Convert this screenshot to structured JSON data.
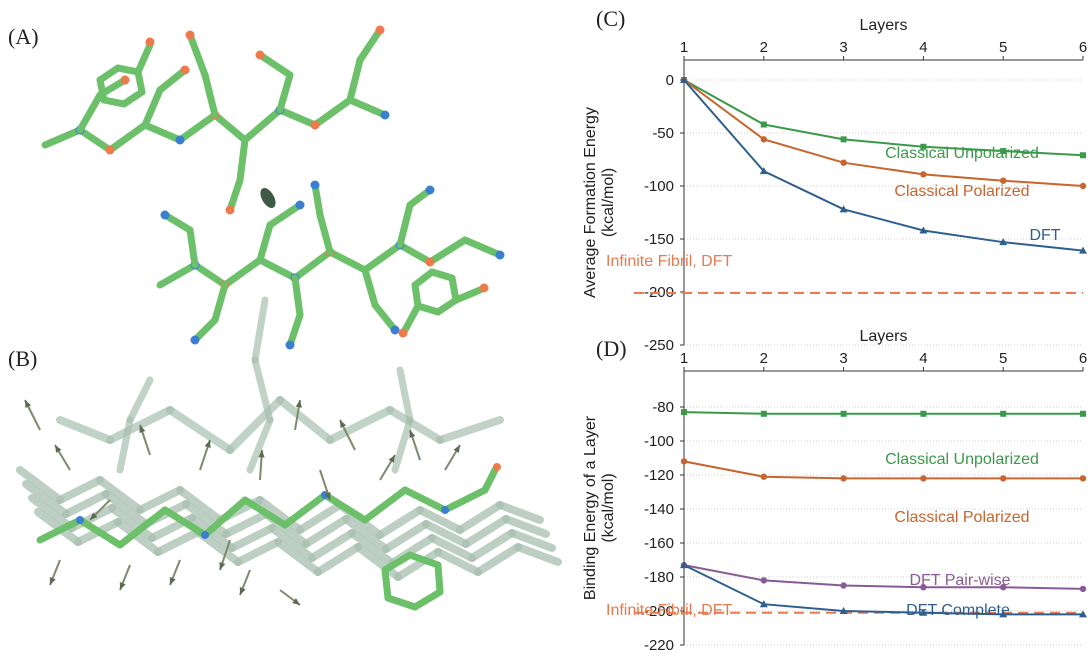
{
  "panels": {
    "A": "(A)",
    "B": "(B)",
    "C": "(C)",
    "D": "(D)"
  },
  "colors": {
    "green": "#3a9a4a",
    "orange": "#c8642e",
    "blue": "#2f5f8e",
    "purple": "#8a5a96",
    "dashed": "#e67a50",
    "atom_carbon": "#6cc06a",
    "atom_nitrogen": "#3a7fd0",
    "atom_oxygen": "#ec7a4a"
  },
  "chart_data": [
    {
      "id": "C",
      "type": "line",
      "xlabel": "Layers",
      "ylabel": "Average Formation Energy (kcal/mol)",
      "ylabel_lines": [
        "Average Formation Energy",
        "(kcal/mol)"
      ],
      "x": [
        1,
        2,
        3,
        4,
        5,
        6
      ],
      "xlim": [
        1,
        6
      ],
      "ylim": [
        -250,
        0
      ],
      "yticks": [
        0,
        -50,
        -100,
        -150,
        -200,
        -250
      ],
      "series": [
        {
          "name": "Classical Unpolarized",
          "color": "#3a9a4a",
          "marker": "square",
          "values": [
            0,
            -42,
            -56,
            -63,
            -67,
            -71
          ]
        },
        {
          "name": "Classical Polarized",
          "color": "#c8642e",
          "marker": "circle",
          "values": [
            0,
            -56,
            -78,
            -89,
            -95,
            -100
          ]
        },
        {
          "name": "DFT",
          "color": "#2f5f8e",
          "marker": "triangle",
          "values": [
            0,
            -86,
            -122,
            -142,
            -153,
            -161
          ]
        }
      ],
      "reference": {
        "name": "Infinite Fibril, DFT",
        "value": -201,
        "color": "#e67a50",
        "style": "dashed"
      }
    },
    {
      "id": "D",
      "type": "line",
      "xlabel": "Layers",
      "ylabel": "Binding Energy of a Layer (kcal/mol)",
      "ylabel_lines": [
        "Binding Energy of a Layer",
        "(kcal/mol)"
      ],
      "x": [
        1,
        2,
        3,
        4,
        5,
        6
      ],
      "xlim": [
        1,
        6
      ],
      "ylim": [
        -220,
        -70
      ],
      "yticks": [
        -80,
        -100,
        -120,
        -140,
        -160,
        -180,
        -200,
        -220
      ],
      "series": [
        {
          "name": "Classical Unpolarized",
          "color": "#3a9a4a",
          "marker": "square",
          "values": [
            -83,
            -84,
            -84,
            -84,
            -84,
            -84
          ]
        },
        {
          "name": "Classical Polarized",
          "color": "#c8642e",
          "marker": "circle",
          "values": [
            -112,
            -121,
            -122,
            -122,
            -122,
            -122
          ]
        },
        {
          "name": "DFT Pair-wise",
          "color": "#8a5a96",
          "marker": "circle",
          "values": [
            -173,
            -182,
            -185,
            -186,
            -186,
            -187
          ]
        },
        {
          "name": "DFT Complete",
          "color": "#2f5f8e",
          "marker": "triangle",
          "values": [
            -173,
            -196,
            -200,
            -201,
            -202,
            -202
          ]
        }
      ],
      "reference": {
        "name": "Infinite Fibril, DFT",
        "value": -201,
        "color": "#e67a50",
        "style": "dashed"
      }
    }
  ]
}
